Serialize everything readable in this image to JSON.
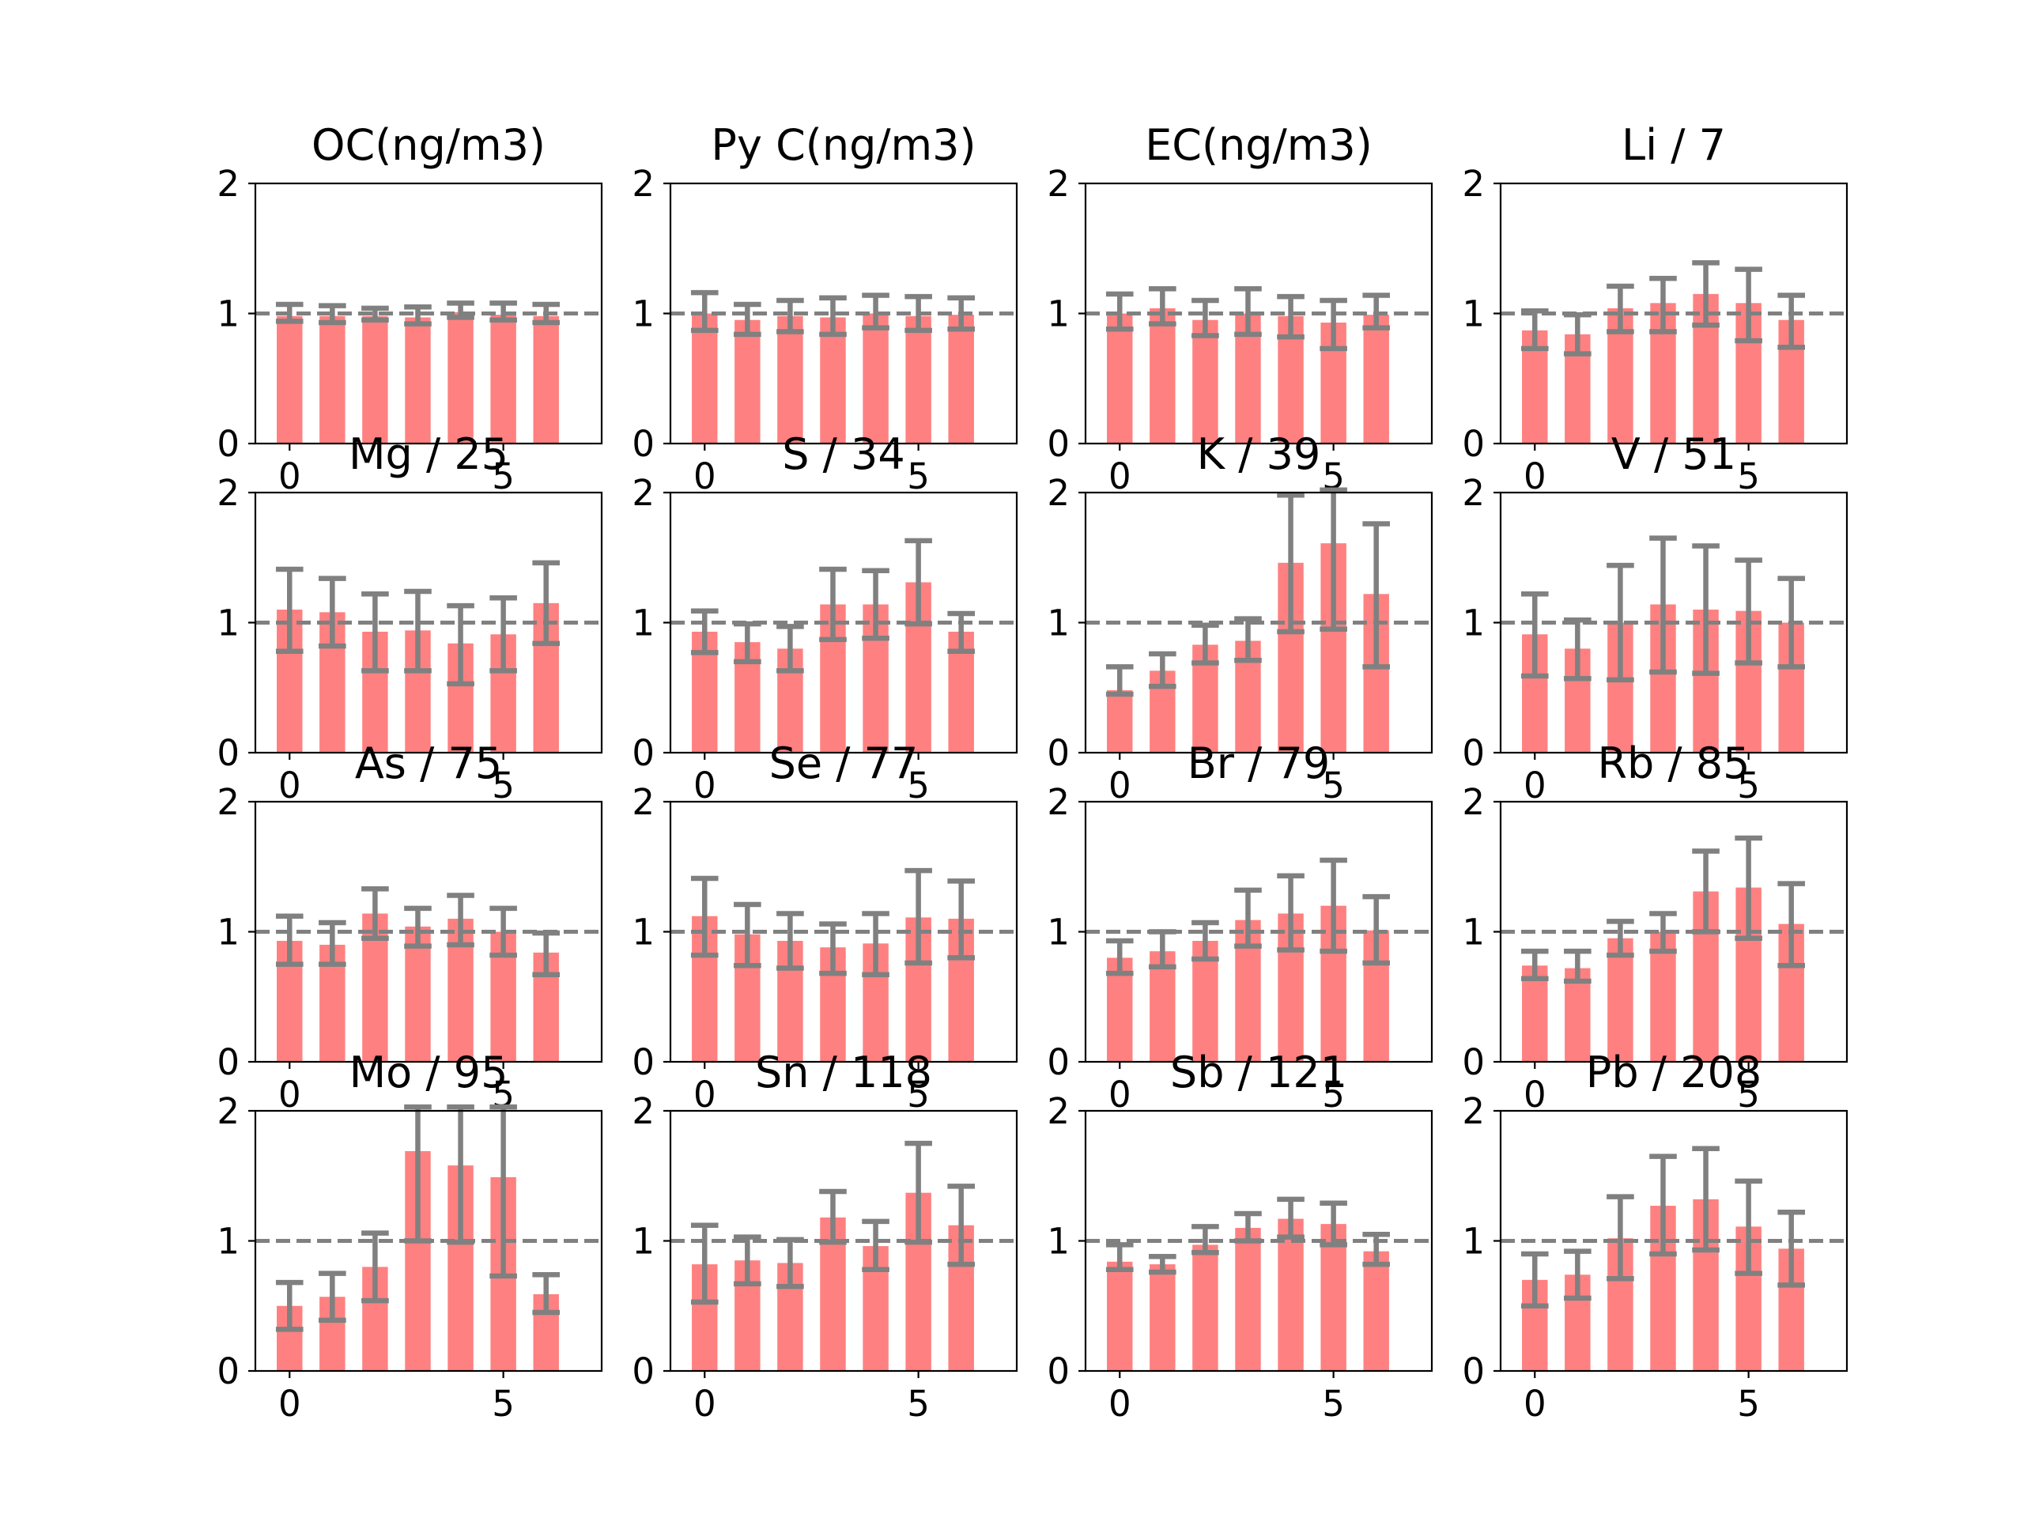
{
  "figure": {
    "bar_color": "#ff8080",
    "error_color": "#808080",
    "reference_color": "#808080"
  },
  "chart_data": [
    {
      "type": "bar",
      "title": "OC(ng/m3)",
      "x": [
        0,
        1,
        2,
        3,
        4,
        5,
        6
      ],
      "values": [
        0.98,
        0.98,
        0.98,
        0.97,
        1.01,
        0.99,
        0.98
      ],
      "error_low": [
        0.94,
        0.93,
        0.95,
        0.92,
        0.97,
        0.95,
        0.93
      ],
      "error_high": [
        1.07,
        1.06,
        1.04,
        1.05,
        1.08,
        1.08,
        1.07
      ],
      "reference_line": 1,
      "ylim": [
        0,
        2
      ],
      "yticks": [
        "0",
        "1",
        "2"
      ],
      "xticks": [
        "0",
        "5"
      ]
    },
    {
      "type": "bar",
      "title": "Py C(ng/m3)",
      "x": [
        0,
        1,
        2,
        3,
        4,
        5,
        6
      ],
      "values": [
        1.0,
        0.95,
        0.98,
        0.97,
        1.0,
        0.98,
        0.99
      ],
      "error_low": [
        0.87,
        0.84,
        0.86,
        0.84,
        0.89,
        0.87,
        0.88
      ],
      "error_high": [
        1.16,
        1.07,
        1.1,
        1.12,
        1.14,
        1.13,
        1.12
      ],
      "reference_line": 1,
      "ylim": [
        0,
        2
      ],
      "yticks": [
        "0",
        "1",
        "2"
      ],
      "xticks": [
        "0",
        "5"
      ]
    },
    {
      "type": "bar",
      "title": "EC(ng/m3)",
      "x": [
        0,
        1,
        2,
        3,
        4,
        5,
        6
      ],
      "values": [
        1.0,
        1.04,
        0.95,
        1.0,
        0.98,
        0.93,
        0.99
      ],
      "error_low": [
        0.88,
        0.92,
        0.83,
        0.84,
        0.82,
        0.73,
        0.89
      ],
      "error_high": [
        1.15,
        1.19,
        1.1,
        1.19,
        1.13,
        1.1,
        1.14
      ],
      "reference_line": 1,
      "ylim": [
        0,
        2
      ],
      "yticks": [
        "0",
        "1",
        "2"
      ],
      "xticks": [
        "0",
        "5"
      ]
    },
    {
      "type": "bar",
      "title": "Li / 7",
      "x": [
        0,
        1,
        2,
        3,
        4,
        5,
        6
      ],
      "values": [
        0.87,
        0.84,
        1.04,
        1.08,
        1.15,
        1.08,
        0.95
      ],
      "error_low": [
        0.73,
        0.69,
        0.86,
        0.86,
        0.91,
        0.79,
        0.74
      ],
      "error_high": [
        1.02,
        0.99,
        1.21,
        1.27,
        1.39,
        1.34,
        1.14
      ],
      "reference_line": 1,
      "ylim": [
        0,
        2
      ],
      "yticks": [
        "0",
        "1",
        "2"
      ],
      "xticks": [
        "0",
        "5"
      ]
    },
    {
      "type": "bar",
      "title": "Mg / 25",
      "x": [
        0,
        1,
        2,
        3,
        4,
        5,
        6
      ],
      "values": [
        1.1,
        1.08,
        0.93,
        0.94,
        0.84,
        0.91,
        1.15
      ],
      "error_low": [
        0.78,
        0.82,
        0.63,
        0.63,
        0.53,
        0.63,
        0.84
      ],
      "error_high": [
        1.41,
        1.34,
        1.22,
        1.24,
        1.13,
        1.19,
        1.46
      ],
      "reference_line": 1,
      "ylim": [
        0,
        2
      ],
      "yticks": [
        "0",
        "1",
        "2"
      ],
      "xticks": [
        "0",
        "5"
      ]
    },
    {
      "type": "bar",
      "title": "S / 34",
      "x": [
        0,
        1,
        2,
        3,
        4,
        5,
        6
      ],
      "values": [
        0.93,
        0.85,
        0.8,
        1.14,
        1.14,
        1.31,
        0.93
      ],
      "error_low": [
        0.77,
        0.7,
        0.63,
        0.87,
        0.88,
        0.99,
        0.78
      ],
      "error_high": [
        1.09,
        0.99,
        0.97,
        1.41,
        1.4,
        1.63,
        1.07
      ],
      "reference_line": 1,
      "ylim": [
        0,
        2
      ],
      "yticks": [
        "0",
        "1",
        "2"
      ],
      "xticks": [
        "0",
        "5"
      ]
    },
    {
      "type": "bar",
      "title": "K / 39",
      "x": [
        0,
        1,
        2,
        3,
        4,
        5,
        6
      ],
      "values": [
        0.48,
        0.63,
        0.83,
        0.86,
        1.46,
        1.61,
        1.22
      ],
      "error_low": [
        0.45,
        0.51,
        0.69,
        0.71,
        0.93,
        0.95,
        0.66
      ],
      "error_high": [
        0.66,
        0.76,
        0.98,
        1.03,
        1.98,
        2.02,
        1.76
      ],
      "reference_line": 1,
      "ylim": [
        0,
        2
      ],
      "yticks": [
        "0",
        "1",
        "2"
      ],
      "xticks": [
        "0",
        "5"
      ]
    },
    {
      "type": "bar",
      "title": "V / 51",
      "x": [
        0,
        1,
        2,
        3,
        4,
        5,
        6
      ],
      "values": [
        0.91,
        0.8,
        1.0,
        1.14,
        1.1,
        1.09,
        1.0
      ],
      "error_low": [
        0.59,
        0.57,
        0.56,
        0.62,
        0.61,
        0.69,
        0.66
      ],
      "error_high": [
        1.22,
        1.02,
        1.44,
        1.65,
        1.59,
        1.48,
        1.34
      ],
      "reference_line": 1,
      "ylim": [
        0,
        2
      ],
      "yticks": [
        "0",
        "1",
        "2"
      ],
      "xticks": [
        "0",
        "5"
      ]
    },
    {
      "type": "bar",
      "title": "As / 75",
      "x": [
        0,
        1,
        2,
        3,
        4,
        5,
        6
      ],
      "values": [
        0.93,
        0.9,
        1.14,
        1.04,
        1.1,
        1.0,
        0.84
      ],
      "error_low": [
        0.75,
        0.75,
        0.95,
        0.89,
        0.9,
        0.82,
        0.67
      ],
      "error_high": [
        1.12,
        1.07,
        1.33,
        1.18,
        1.28,
        1.18,
        0.99
      ],
      "reference_line": 1,
      "ylim": [
        0,
        2
      ],
      "yticks": [
        "0",
        "1",
        "2"
      ],
      "xticks": [
        "0",
        "5"
      ]
    },
    {
      "type": "bar",
      "title": "Se / 77",
      "x": [
        0,
        1,
        2,
        3,
        4,
        5,
        6
      ],
      "values": [
        1.12,
        0.98,
        0.93,
        0.88,
        0.91,
        1.11,
        1.1
      ],
      "error_low": [
        0.82,
        0.74,
        0.72,
        0.68,
        0.67,
        0.76,
        0.8
      ],
      "error_high": [
        1.41,
        1.21,
        1.14,
        1.06,
        1.14,
        1.47,
        1.39
      ],
      "reference_line": 1,
      "ylim": [
        0,
        2
      ],
      "yticks": [
        "0",
        "1",
        "2"
      ],
      "xticks": [
        "0",
        "5"
      ]
    },
    {
      "type": "bar",
      "title": "Br / 79",
      "x": [
        0,
        1,
        2,
        3,
        4,
        5,
        6
      ],
      "values": [
        0.8,
        0.85,
        0.93,
        1.09,
        1.14,
        1.2,
        1.01
      ],
      "error_low": [
        0.68,
        0.73,
        0.79,
        0.89,
        0.86,
        0.85,
        0.76
      ],
      "error_high": [
        0.93,
        1.0,
        1.07,
        1.32,
        1.43,
        1.55,
        1.27
      ],
      "reference_line": 1,
      "ylim": [
        0,
        2
      ],
      "yticks": [
        "0",
        "1",
        "2"
      ],
      "xticks": [
        "0",
        "5"
      ]
    },
    {
      "type": "bar",
      "title": "Rb / 85",
      "x": [
        0,
        1,
        2,
        3,
        4,
        5,
        6
      ],
      "values": [
        0.74,
        0.72,
        0.95,
        1.0,
        1.31,
        1.34,
        1.06
      ],
      "error_low": [
        0.64,
        0.62,
        0.82,
        0.85,
        1.0,
        0.95,
        0.74
      ],
      "error_high": [
        0.85,
        0.85,
        1.08,
        1.14,
        1.62,
        1.72,
        1.37
      ],
      "reference_line": 1,
      "ylim": [
        0,
        2
      ],
      "yticks": [
        "0",
        "1",
        "2"
      ],
      "xticks": [
        "0",
        "5"
      ]
    },
    {
      "type": "bar",
      "title": "Mo / 95",
      "x": [
        0,
        1,
        2,
        3,
        4,
        5,
        6
      ],
      "values": [
        0.5,
        0.57,
        0.8,
        1.69,
        1.58,
        1.49,
        0.59
      ],
      "error_low": [
        0.32,
        0.39,
        0.54,
        1.0,
        0.99,
        0.73,
        0.45
      ],
      "error_high": [
        0.68,
        0.75,
        1.06,
        2.03,
        2.03,
        2.03,
        0.74
      ],
      "reference_line": 1,
      "ylim": [
        0,
        2
      ],
      "yticks": [
        "0",
        "1",
        "2"
      ],
      "xticks": [
        "0",
        "5"
      ]
    },
    {
      "type": "bar",
      "title": "Sn / 118",
      "x": [
        0,
        1,
        2,
        3,
        4,
        5,
        6
      ],
      "values": [
        0.82,
        0.85,
        0.83,
        1.18,
        0.96,
        1.37,
        1.12
      ],
      "error_low": [
        0.53,
        0.67,
        0.65,
        0.99,
        0.78,
        0.99,
        0.82
      ],
      "error_high": [
        1.12,
        1.03,
        1.01,
        1.38,
        1.15,
        1.75,
        1.42
      ],
      "reference_line": 1,
      "ylim": [
        0,
        2
      ],
      "yticks": [
        "0",
        "1",
        "2"
      ],
      "xticks": [
        "0",
        "5"
      ]
    },
    {
      "type": "bar",
      "title": "Sb / 121",
      "x": [
        0,
        1,
        2,
        3,
        4,
        5,
        6
      ],
      "values": [
        0.84,
        0.82,
        0.97,
        1.1,
        1.17,
        1.13,
        0.92
      ],
      "error_low": [
        0.78,
        0.76,
        0.91,
        1.0,
        1.03,
        0.97,
        0.82
      ],
      "error_high": [
        0.97,
        0.88,
        1.11,
        1.21,
        1.32,
        1.29,
        1.05
      ],
      "reference_line": 1,
      "ylim": [
        0,
        2
      ],
      "yticks": [
        "0",
        "1",
        "2"
      ],
      "xticks": [
        "0",
        "5"
      ]
    },
    {
      "type": "bar",
      "title": "Pb / 208",
      "x": [
        0,
        1,
        2,
        3,
        4,
        5,
        6
      ],
      "values": [
        0.7,
        0.74,
        1.02,
        1.27,
        1.32,
        1.11,
        0.94
      ],
      "error_low": [
        0.5,
        0.56,
        0.71,
        0.9,
        0.93,
        0.75,
        0.66
      ],
      "error_high": [
        0.9,
        0.92,
        1.34,
        1.65,
        1.71,
        1.46,
        1.22
      ],
      "reference_line": 1,
      "ylim": [
        0,
        2
      ],
      "yticks": [
        "0",
        "1",
        "2"
      ],
      "xticks": [
        "0",
        "5"
      ]
    }
  ]
}
